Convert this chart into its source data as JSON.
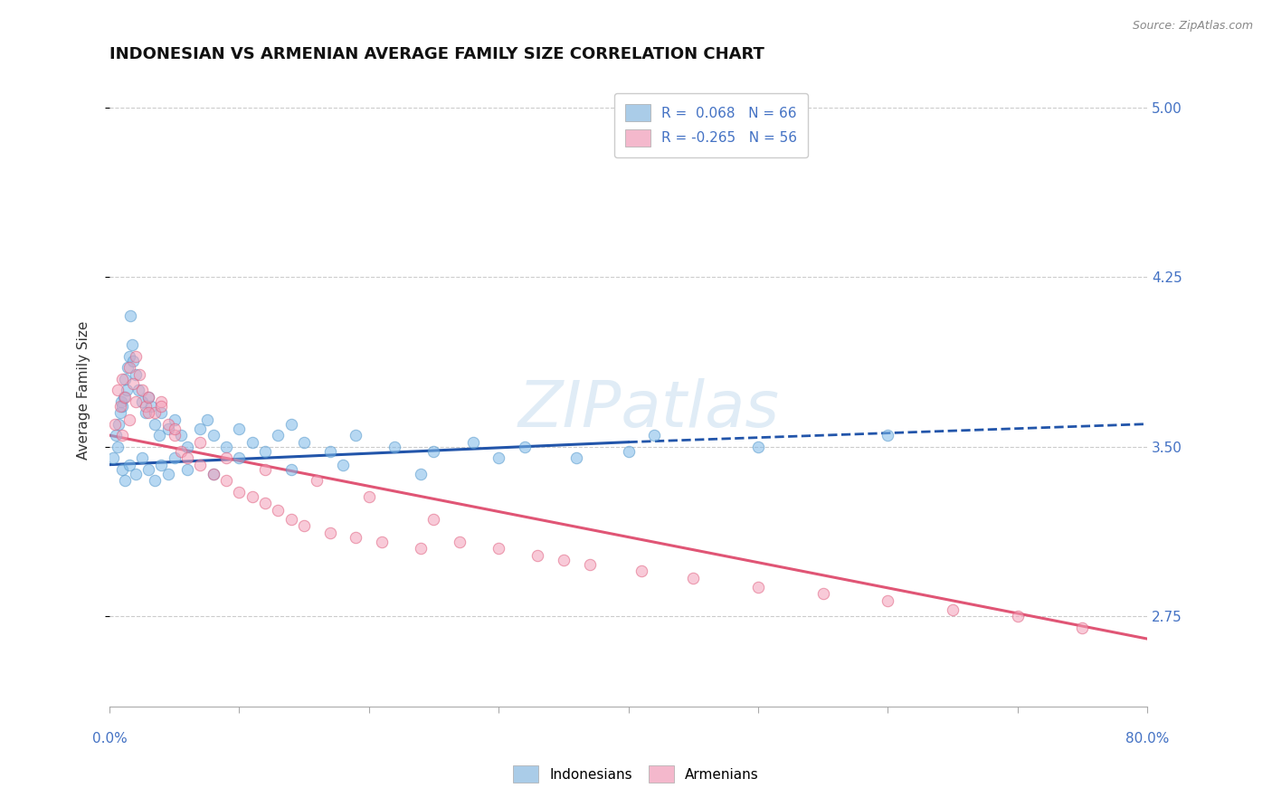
{
  "title": "INDONESIAN VS ARMENIAN AVERAGE FAMILY SIZE CORRELATION CHART",
  "source": "Source: ZipAtlas.com",
  "ylabel": "Average Family Size",
  "xlim": [
    0.0,
    80.0
  ],
  "ylim": [
    2.35,
    5.15
  ],
  "yticks_right": [
    2.75,
    3.5,
    4.25,
    5.0
  ],
  "indonesian_scatter": {
    "color": "#7db8e8",
    "edgecolor": "#5599cc",
    "alpha": 0.55,
    "size": 80,
    "x": [
      0.3,
      0.5,
      0.6,
      0.7,
      0.8,
      0.9,
      1.0,
      1.1,
      1.2,
      1.3,
      1.4,
      1.5,
      1.6,
      1.7,
      1.8,
      2.0,
      2.2,
      2.5,
      2.8,
      3.0,
      3.2,
      3.5,
      3.8,
      4.0,
      4.5,
      5.0,
      5.5,
      6.0,
      7.0,
      7.5,
      8.0,
      9.0,
      10.0,
      11.0,
      12.0,
      13.0,
      14.0,
      15.0,
      17.0,
      19.0,
      22.0,
      25.0,
      28.0,
      32.0,
      36.0,
      42.0,
      50.0,
      60.0,
      1.0,
      1.2,
      1.5,
      2.0,
      2.5,
      3.0,
      3.5,
      4.0,
      4.5,
      5.0,
      6.0,
      8.0,
      10.0,
      14.0,
      18.0,
      24.0,
      30.0,
      40.0
    ],
    "y": [
      3.45,
      3.55,
      3.5,
      3.6,
      3.65,
      3.7,
      3.68,
      3.72,
      3.8,
      3.75,
      3.85,
      3.9,
      4.08,
      3.95,
      3.88,
      3.82,
      3.75,
      3.7,
      3.65,
      3.72,
      3.68,
      3.6,
      3.55,
      3.65,
      3.58,
      3.62,
      3.55,
      3.5,
      3.58,
      3.62,
      3.55,
      3.5,
      3.58,
      3.52,
      3.48,
      3.55,
      3.6,
      3.52,
      3.48,
      3.55,
      3.5,
      3.48,
      3.52,
      3.5,
      3.45,
      3.55,
      3.5,
      3.55,
      3.4,
      3.35,
      3.42,
      3.38,
      3.45,
      3.4,
      3.35,
      3.42,
      3.38,
      3.45,
      3.4,
      3.38,
      3.45,
      3.4,
      3.42,
      3.38,
      3.45,
      3.48
    ]
  },
  "armenian_scatter": {
    "color": "#f4a0b8",
    "edgecolor": "#e06080",
    "alpha": 0.55,
    "size": 80,
    "x": [
      0.4,
      0.6,
      0.8,
      1.0,
      1.2,
      1.5,
      1.8,
      2.0,
      2.3,
      2.5,
      2.8,
      3.0,
      3.5,
      4.0,
      4.5,
      5.0,
      5.5,
      6.0,
      7.0,
      8.0,
      9.0,
      10.0,
      11.0,
      12.0,
      13.0,
      14.0,
      15.0,
      17.0,
      19.0,
      21.0,
      24.0,
      27.0,
      30.0,
      33.0,
      37.0,
      41.0,
      45.0,
      50.0,
      55.0,
      60.0,
      65.0,
      70.0,
      75.0,
      1.0,
      1.5,
      2.0,
      3.0,
      4.0,
      5.0,
      7.0,
      9.0,
      12.0,
      16.0,
      20.0,
      25.0,
      35.0
    ],
    "y": [
      3.6,
      3.75,
      3.68,
      3.8,
      3.72,
      3.85,
      3.78,
      3.9,
      3.82,
      3.75,
      3.68,
      3.72,
      3.65,
      3.7,
      3.6,
      3.55,
      3.48,
      3.45,
      3.42,
      3.38,
      3.35,
      3.3,
      3.28,
      3.25,
      3.22,
      3.18,
      3.15,
      3.12,
      3.1,
      3.08,
      3.05,
      3.08,
      3.05,
      3.02,
      2.98,
      2.95,
      2.92,
      2.88,
      2.85,
      2.82,
      2.78,
      2.75,
      2.7,
      3.55,
      3.62,
      3.7,
      3.65,
      3.68,
      3.58,
      3.52,
      3.45,
      3.4,
      3.35,
      3.28,
      3.18,
      3.0
    ]
  },
  "trend_indonesian_solid": {
    "x_start": 0.0,
    "x_end": 40.0,
    "y_start": 3.42,
    "y_end": 3.52,
    "color": "#2255aa",
    "linestyle": "-",
    "linewidth": 2.2
  },
  "trend_indonesian_dashed": {
    "x_start": 40.0,
    "x_end": 80.0,
    "y_start": 3.52,
    "y_end": 3.6,
    "color": "#2255aa",
    "linestyle": "--",
    "linewidth": 2.0
  },
  "trend_armenian": {
    "x_start": 0.0,
    "x_end": 80.0,
    "y_start": 3.55,
    "y_end": 2.65,
    "color": "#e05575",
    "linestyle": "-",
    "linewidth": 2.2
  },
  "grid_color": "#cccccc",
  "grid_linestyle": "--",
  "background_color": "#ffffff",
  "title_fontsize": 13,
  "axis_label_fontsize": 11,
  "tick_fontsize": 11,
  "legend_upper_labels": [
    "R =  0.068   N = 66",
    "R = -0.265   N = 56"
  ],
  "legend_lower_labels": [
    "Indonesians",
    "Armenians"
  ],
  "legend_upper_patch_colors": [
    "#aacce8",
    "#f4b8cc"
  ],
  "legend_lower_patch_colors": [
    "#aacce8",
    "#f4b8cc"
  ],
  "watermark": "ZIPatlas"
}
